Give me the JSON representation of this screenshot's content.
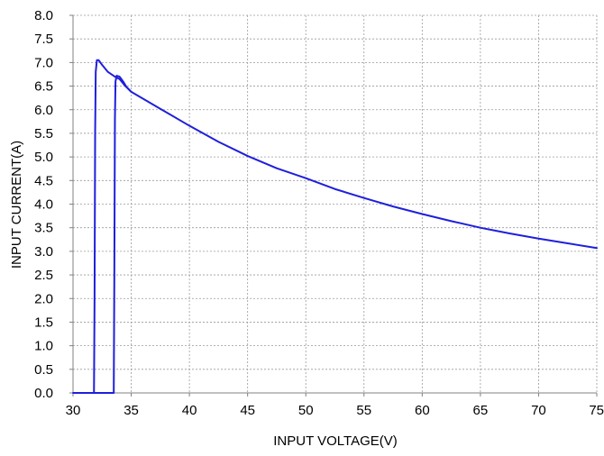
{
  "chart_data": {
    "type": "line",
    "xlabel": "INPUT VOLTAGE(V)",
    "ylabel": "INPUT  CURRENT(A)",
    "xlim": [
      30,
      75
    ],
    "ylim": [
      0,
      8
    ],
    "x_ticks": [
      "30",
      "35",
      "40",
      "45",
      "50",
      "55",
      "60",
      "65",
      "70",
      "75"
    ],
    "y_ticks": [
      "0.0",
      "0.5",
      "1.0",
      "1.5",
      "2.0",
      "2.5",
      "3.0",
      "3.5",
      "4.0",
      "4.5",
      "5.0",
      "5.5",
      "6.0",
      "6.5",
      "7.0",
      "7.5",
      "8.0"
    ],
    "grid": true,
    "line_color": "#1f1fdc",
    "series": [
      {
        "points": [
          [
            30.0,
            0.0
          ],
          [
            31.8,
            0.0
          ],
          [
            31.85,
            2.0
          ],
          [
            31.9,
            5.5
          ],
          [
            31.95,
            6.8
          ],
          [
            32.05,
            7.05
          ],
          [
            32.2,
            7.05
          ],
          [
            32.5,
            6.95
          ],
          [
            33.0,
            6.8
          ],
          [
            33.6,
            6.7
          ],
          [
            34.0,
            6.65
          ],
          [
            34.5,
            6.5
          ],
          [
            35.0,
            6.38
          ],
          [
            37.5,
            6.02
          ],
          [
            40.0,
            5.66
          ],
          [
            42.5,
            5.32
          ],
          [
            45.0,
            5.02
          ],
          [
            47.5,
            4.76
          ],
          [
            50.0,
            4.55
          ],
          [
            52.5,
            4.32
          ],
          [
            55.0,
            4.13
          ],
          [
            57.5,
            3.95
          ],
          [
            60.0,
            3.79
          ],
          [
            62.5,
            3.64
          ],
          [
            65.0,
            3.5
          ],
          [
            67.5,
            3.38
          ],
          [
            70.0,
            3.27
          ],
          [
            72.5,
            3.17
          ],
          [
            75.0,
            3.07
          ]
        ]
      },
      {
        "points": [
          [
            31.8,
            0.0
          ],
          [
            33.5,
            0.0
          ],
          [
            33.55,
            2.5
          ],
          [
            33.6,
            5.8
          ],
          [
            33.65,
            6.6
          ],
          [
            33.75,
            6.72
          ],
          [
            34.0,
            6.7
          ],
          [
            34.3,
            6.6
          ],
          [
            34.6,
            6.48
          ],
          [
            35.0,
            6.38
          ]
        ]
      }
    ]
  }
}
